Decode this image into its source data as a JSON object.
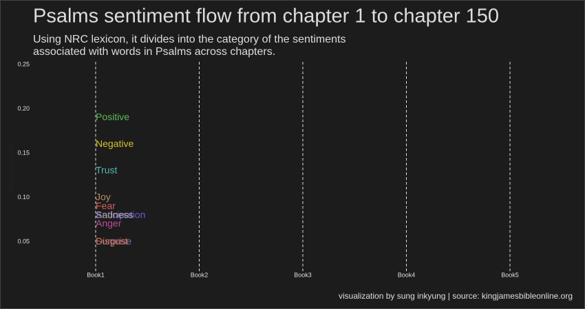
{
  "chart_data": {
    "type": "text",
    "title": "Psalms sentiment flow from chapter 1 to chapter 150",
    "subtitle": [
      "Using NRC lexicon, it divides into the category of the sentiments",
      "associated with words in Psalms across chapters."
    ],
    "y_label": "Percent of words",
    "caption": "visualization by sung inkyung | source: kingjamesbibleonline.org",
    "categories": [
      "Book1",
      "Book2",
      "Book3",
      "Book4",
      "Book5"
    ],
    "series": [
      {
        "name": "Positive",
        "color": "#5cb85c",
        "values": [
          0.19,
          null,
          null,
          null,
          null
        ]
      },
      {
        "name": "Negative",
        "color": "#d4c02a",
        "values": [
          0.16,
          null,
          null,
          null,
          null
        ]
      },
      {
        "name": "Trust",
        "color": "#4fb8ad",
        "values": [
          0.13,
          null,
          null,
          null,
          null
        ]
      },
      {
        "name": "Joy",
        "color": "#b88a5a",
        "values": [
          0.1,
          null,
          null,
          null,
          null
        ]
      },
      {
        "name": "Fear",
        "color": "#d0605a",
        "values": [
          0.09,
          null,
          null,
          null,
          null
        ]
      },
      {
        "name": "Anticipation",
        "color": "#6a5ad0",
        "values": [
          0.08,
          null,
          null,
          null,
          null
        ]
      },
      {
        "name": "Sadness",
        "color": "#b0a8a0",
        "values": [
          0.08,
          null,
          null,
          null,
          null
        ]
      },
      {
        "name": "Anger",
        "color": "#c24a9a",
        "values": [
          0.07,
          null,
          null,
          null,
          null
        ]
      },
      {
        "name": "Surprise",
        "color": "#8a6aa8",
        "values": [
          0.05,
          null,
          null,
          null,
          null
        ]
      },
      {
        "name": "Disgust",
        "color": "#d0704a",
        "values": [
          0.05,
          null,
          null,
          null,
          null
        ]
      }
    ],
    "ylim": [
      0.017,
      0.253
    ],
    "yticks": [
      0.05,
      {
        "value": 0.1,
        "label": "0.10"
      },
      0.15,
      {
        "value": 0.2,
        "label": "0.20"
      },
      0.25
    ],
    "grid": "x-dashed"
  }
}
